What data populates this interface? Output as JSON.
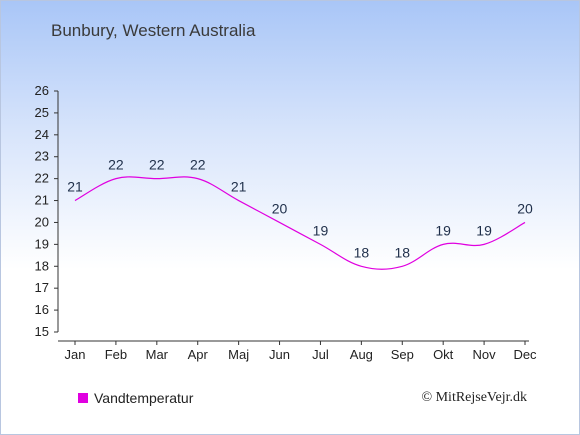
{
  "header": {
    "title": "Bunbury, Western Australia"
  },
  "legend": {
    "label": "Vandtemperatur",
    "color": "#e000e0"
  },
  "credit": "© MitRejseVejr.dk",
  "chart_data": {
    "type": "line",
    "categories": [
      "Jan",
      "Feb",
      "Mar",
      "Apr",
      "Maj",
      "Jun",
      "Jul",
      "Aug",
      "Sep",
      "Okt",
      "Nov",
      "Dec"
    ],
    "series": [
      {
        "name": "Vandtemperatur",
        "values": [
          21,
          22,
          22,
          22,
          21,
          20,
          19,
          18,
          18,
          19,
          19,
          20
        ],
        "color": "#e000e0"
      }
    ],
    "title": "Bunbury, Western Australia",
    "xlabel": "",
    "ylabel": "",
    "ylim": [
      15,
      26
    ],
    "yticks": [
      15,
      16,
      17,
      18,
      19,
      20,
      21,
      22,
      23,
      24,
      25,
      26
    ],
    "grid": false,
    "legend_position": "bottom-left"
  }
}
